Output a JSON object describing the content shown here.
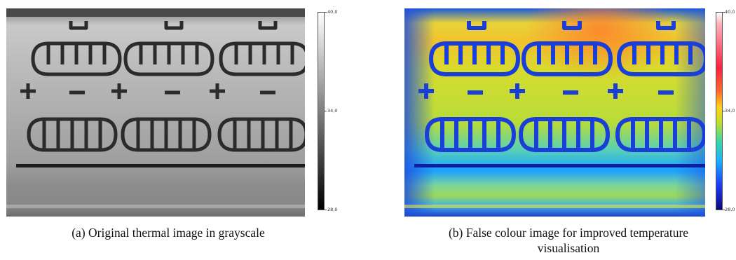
{
  "panel_a": {
    "caption": "(a) Original thermal image in grayscale",
    "scale": {
      "max": "40,0",
      "mid": "34,0",
      "min": "28,0"
    },
    "colormap": [
      "#000000",
      "#ffffff"
    ]
  },
  "panel_b": {
    "caption_line1": "(b) False colour image for improved temperature",
    "caption_line2": "visualisation",
    "scale": {
      "max": "40,0",
      "mid": "34,0",
      "min": "28,0"
    },
    "colormap": [
      "#0a0a7a",
      "#1b3fff",
      "#19b4ff",
      "#3fd7a0",
      "#c8e020",
      "#ffd21a",
      "#ff6a2a",
      "#ff2040",
      "#ffb0b8",
      "#ffffff"
    ]
  }
}
